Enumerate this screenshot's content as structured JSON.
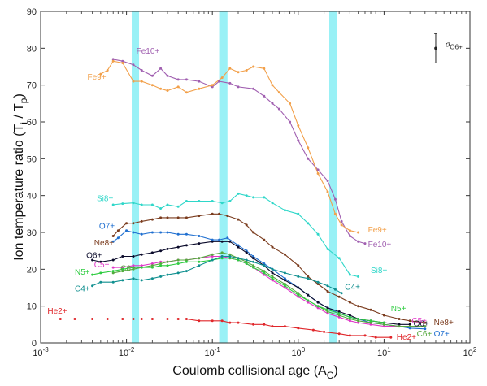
{
  "chart_data": {
    "type": "line",
    "title": "",
    "xlabel": "Coulomb collisional age (A",
    "xlabel_sub": "C",
    "xlabel_close": ")",
    "ylabel": "Ion temperature ratio (T",
    "ylabel_sub_i": "i",
    "ylabel_mid": " / T",
    "ylabel_sub_p": "p",
    "ylabel_close": ")",
    "x_scale": "log",
    "xlim": [
      0.001,
      100
    ],
    "ylim": [
      0,
      90
    ],
    "x_ticks": [
      0.001,
      0.01,
      0.1,
      1,
      10,
      100
    ],
    "x_tick_labels": [
      {
        "base": "10",
        "exp": "-3"
      },
      {
        "base": "10",
        "exp": "-2"
      },
      {
        "base": "10",
        "exp": "-1"
      },
      {
        "base": "10",
        "exp": "0"
      },
      {
        "base": "10",
        "exp": "1"
      },
      {
        "base": "10",
        "exp": "2"
      }
    ],
    "y_ticks": [
      0,
      10,
      20,
      30,
      40,
      50,
      60,
      70,
      80,
      90
    ],
    "y_tick_labels": [
      "0",
      "10",
      "20",
      "30",
      "40",
      "50",
      "60",
      "70",
      "80",
      "90"
    ],
    "grid": false,
    "shaded_bands": [
      {
        "x0": 0.0115,
        "x1": 0.014,
        "color": "#8eeff5"
      },
      {
        "x0": 0.12,
        "x1": 0.15,
        "color": "#8eeff5"
      },
      {
        "x0": 2.3,
        "x1": 2.85,
        "color": "#8eeff5"
      }
    ],
    "error_bar": {
      "x": 40,
      "y": 80,
      "yerr": 4,
      "label": "σ",
      "label_sub": "O6+"
    },
    "series": [
      {
        "name": "Fe10+",
        "color": "#a05fb0",
        "label_at": [
          0.013,
          78.5
        ],
        "end_label_at": [
          6.5,
          26
        ],
        "x": [
          0.007,
          0.009,
          0.012,
          0.015,
          0.02,
          0.025,
          0.03,
          0.04,
          0.05,
          0.07,
          0.1,
          0.12,
          0.16,
          0.2,
          0.3,
          0.4,
          0.5,
          0.6,
          0.8,
          1.0,
          1.3,
          1.7,
          2.2,
          2.7,
          3.2,
          4.0,
          5.0,
          6.0
        ],
        "y": [
          77,
          76.5,
          75.5,
          74,
          72.5,
          74.5,
          72.5,
          71.5,
          71.5,
          71,
          69.5,
          71,
          70.5,
          69.5,
          69,
          67,
          65,
          63.5,
          60,
          55,
          50,
          47,
          44,
          39,
          33,
          29,
          27.5,
          27
        ]
      },
      {
        "name": "Fe9+",
        "color": "#f2a04a",
        "label_at": [
          0.0035,
          71.5
        ],
        "end_label_at": [
          6.5,
          30
        ],
        "x": [
          0.005,
          0.006,
          0.007,
          0.009,
          0.012,
          0.015,
          0.02,
          0.025,
          0.03,
          0.04,
          0.05,
          0.07,
          0.1,
          0.13,
          0.16,
          0.2,
          0.25,
          0.3,
          0.4,
          0.5,
          0.6,
          0.8,
          1.0,
          1.3,
          1.7,
          2.2,
          2.7,
          3.2,
          4.0,
          5.0
        ],
        "y": [
          73,
          74,
          76.5,
          76,
          71,
          71,
          70,
          69,
          68.5,
          69.5,
          68,
          69,
          70,
          72,
          74.5,
          73.5,
          74,
          75,
          74.5,
          70,
          68,
          65,
          59,
          53,
          46,
          41,
          35,
          32,
          30.5,
          30
        ]
      },
      {
        "name": "Si8+",
        "color": "#2fd7c9",
        "label_at": [
          0.0045,
          38.5
        ],
        "end_label_at": [
          7.0,
          19
        ],
        "x": [
          0.007,
          0.009,
          0.012,
          0.015,
          0.02,
          0.025,
          0.03,
          0.04,
          0.05,
          0.07,
          0.1,
          0.13,
          0.16,
          0.2,
          0.25,
          0.3,
          0.4,
          0.5,
          0.7,
          1.0,
          1.3,
          1.7,
          2.2,
          3.0,
          4.0,
          5.0
        ],
        "y": [
          37.5,
          37.8,
          38,
          37.5,
          37.5,
          36.5,
          37.5,
          37,
          38.5,
          38.5,
          38.5,
          38,
          38.5,
          40.5,
          40,
          39.5,
          39.5,
          38,
          36,
          35,
          32.5,
          29.5,
          25.5,
          23,
          18.5,
          18
        ]
      },
      {
        "name": "Ne8+",
        "color": "#7a3b1d",
        "label_at": [
          0.0042,
          26.5
        ],
        "end_label_at": [
          38,
          4.8
        ],
        "x": [
          0.007,
          0.008,
          0.01,
          0.012,
          0.015,
          0.02,
          0.025,
          0.03,
          0.04,
          0.05,
          0.07,
          0.1,
          0.12,
          0.15,
          0.2,
          0.25,
          0.3,
          0.4,
          0.5,
          0.7,
          1.0,
          1.3,
          1.7,
          2.2,
          3.0,
          4.0,
          5.0,
          7.0,
          10,
          15,
          20,
          30
        ],
        "y": [
          29,
          30.5,
          32.5,
          32.5,
          33,
          33.5,
          34,
          34,
          34,
          34,
          34.5,
          35,
          35,
          34.5,
          33.5,
          32,
          30,
          28,
          26,
          24,
          21,
          18,
          16,
          14,
          12.5,
          11,
          10,
          9,
          7.5,
          6.5,
          6,
          5.5
        ]
      },
      {
        "name": "O7+",
        "color": "#1f6fd0",
        "label_at": [
          0.0048,
          31
        ],
        "end_label_at": [
          38,
          1.8
        ],
        "x": [
          0.007,
          0.008,
          0.01,
          0.012,
          0.015,
          0.02,
          0.025,
          0.03,
          0.04,
          0.05,
          0.07,
          0.1,
          0.12,
          0.15,
          0.2,
          0.25,
          0.3,
          0.4,
          0.5,
          0.7,
          1.0,
          1.3,
          1.7,
          2.2,
          3.0,
          4.0,
          5.0,
          7.0,
          10,
          15,
          20,
          30
        ],
        "y": [
          27.5,
          28.5,
          30.5,
          30,
          29.5,
          30,
          30,
          30,
          29.5,
          29.5,
          29,
          28,
          28,
          28.5,
          26.5,
          25,
          23.5,
          21.5,
          20,
          17.5,
          15,
          13,
          11,
          9.5,
          8,
          7,
          6.5,
          5.5,
          5,
          4.5,
          4,
          3.8
        ]
      },
      {
        "name": "O6+",
        "color": "#0a0a2a",
        "label_at": [
          0.0034,
          23
        ],
        "end_label_at": [
          22,
          4.5
        ],
        "x": [
          0.004,
          0.005,
          0.007,
          0.009,
          0.012,
          0.015,
          0.02,
          0.025,
          0.03,
          0.04,
          0.05,
          0.07,
          0.1,
          0.13,
          0.16,
          0.2,
          0.25,
          0.3,
          0.4,
          0.5,
          0.7,
          1.0,
          1.3,
          1.7,
          2.2,
          3.0,
          4.0,
          5.0,
          7.0,
          10,
          15,
          20
        ],
        "y": [
          22.5,
          22,
          22.5,
          23.5,
          23.5,
          24,
          24.5,
          25,
          25.5,
          26,
          26.5,
          27,
          27.5,
          27.5,
          27.5,
          26,
          24.5,
          23,
          21,
          19,
          17,
          15,
          13,
          11,
          9.5,
          8.5,
          7.5,
          6.5,
          6,
          5.5,
          5,
          5
        ]
      },
      {
        "name": "C5+",
        "color": "#e035c8",
        "label_at": [
          0.0042,
          20.5
        ],
        "end_label_at": [
          21,
          5.3
        ],
        "x": [
          0.007,
          0.009,
          0.012,
          0.015,
          0.02,
          0.025,
          0.03,
          0.04,
          0.05,
          0.07,
          0.1,
          0.13,
          0.16,
          0.2,
          0.25,
          0.3,
          0.4,
          0.5,
          0.7,
          1.0,
          1.3,
          1.7,
          2.2,
          3.0,
          4.0,
          5.0,
          7.0,
          10,
          15,
          20,
          30
        ],
        "y": [
          20.5,
          20.5,
          21,
          21,
          21.5,
          22,
          22,
          22.5,
          22.5,
          23,
          23.5,
          23.5,
          23,
          22.5,
          21.5,
          20.5,
          18.5,
          17,
          15,
          12.5,
          11,
          9.5,
          8,
          7,
          6,
          5.5,
          5,
          4.5,
          4.5,
          4.5,
          4.5
        ]
      },
      {
        "name": "C6+",
        "color": "#56a83e",
        "label_at": [
          0.0085,
          19.5
        ],
        "end_label_at": [
          24,
          1.8
        ],
        "x": [
          0.007,
          0.009,
          0.012,
          0.015,
          0.02,
          0.025,
          0.03,
          0.04,
          0.05,
          0.07,
          0.1,
          0.13,
          0.16,
          0.2,
          0.25,
          0.3,
          0.4,
          0.5,
          0.7,
          1.0,
          1.3,
          1.7,
          2.2,
          3.0,
          4.0,
          5.0,
          7.0,
          10,
          15,
          20,
          30
        ],
        "y": [
          19,
          19.5,
          20,
          20.5,
          21,
          21.5,
          22,
          22.5,
          22.5,
          23,
          24,
          24.5,
          24,
          23,
          22,
          21,
          19.5,
          18,
          16,
          13.5,
          11.5,
          10,
          8.5,
          7.5,
          6.5,
          6,
          5.5,
          5,
          4.5,
          4.5,
          4.5
        ]
      },
      {
        "name": "N5+",
        "color": "#2ecc40",
        "label_at": [
          0.0025,
          18.5
        ],
        "end_label_at": [
          12,
          8.6
        ],
        "x": [
          0.004,
          0.005,
          0.007,
          0.009,
          0.012,
          0.015,
          0.02,
          0.025,
          0.03,
          0.04,
          0.05,
          0.07,
          0.1,
          0.13,
          0.16,
          0.2,
          0.25,
          0.3,
          0.4,
          0.5,
          0.7,
          1.0,
          1.3,
          1.7,
          2.2,
          3.0,
          4.0,
          5.0,
          7.0,
          10
        ],
        "y": [
          18.5,
          19,
          19.5,
          20,
          20.5,
          20.5,
          20.5,
          21,
          21,
          21.5,
          22,
          22,
          22.5,
          23,
          23,
          22.5,
          21.5,
          20.5,
          19,
          17.5,
          15.5,
          13,
          11.5,
          10,
          9,
          8,
          7,
          6.5,
          6,
          5.5
        ]
      },
      {
        "name": "C4+",
        "color": "#0f8f8f",
        "label_at": [
          0.0025,
          14
        ],
        "end_label_at": [
          3.5,
          14.5
        ],
        "x": [
          0.004,
          0.005,
          0.007,
          0.009,
          0.012,
          0.015,
          0.02,
          0.025,
          0.03,
          0.04,
          0.05,
          0.07,
          0.1,
          0.13,
          0.16,
          0.2,
          0.25,
          0.3,
          0.4,
          0.5,
          0.7,
          1.0,
          1.3,
          1.7,
          2.2,
          2.7,
          3.2
        ],
        "y": [
          15.5,
          16.5,
          16.5,
          17,
          17.5,
          17,
          17.5,
          18,
          18.5,
          19,
          19.5,
          21,
          22.5,
          23.5,
          23.5,
          23,
          22.5,
          22,
          21,
          20,
          19,
          18,
          17.5,
          16.5,
          15.5,
          14.5,
          13.5
        ]
      },
      {
        "name": "He2+",
        "color": "#e0262a",
        "label_at": [
          0.0012,
          7.9
        ],
        "end_label_at": [
          14,
          0.9
        ],
        "x": [
          0.0017,
          0.0025,
          0.004,
          0.006,
          0.009,
          0.012,
          0.015,
          0.02,
          0.03,
          0.04,
          0.05,
          0.07,
          0.1,
          0.13,
          0.16,
          0.2,
          0.3,
          0.4,
          0.5,
          0.7,
          1.0,
          1.5,
          2.0,
          3.0,
          4.0,
          6.0,
          8.0,
          12
        ],
        "y": [
          6.5,
          6.5,
          6.5,
          6.5,
          6.5,
          6.5,
          6.5,
          6.5,
          6.5,
          6.5,
          6.5,
          6,
          6,
          6,
          5.5,
          5.5,
          5,
          5,
          4.5,
          4.5,
          4,
          3.5,
          3,
          2.5,
          2,
          2,
          1.5,
          1.5
        ]
      }
    ]
  }
}
